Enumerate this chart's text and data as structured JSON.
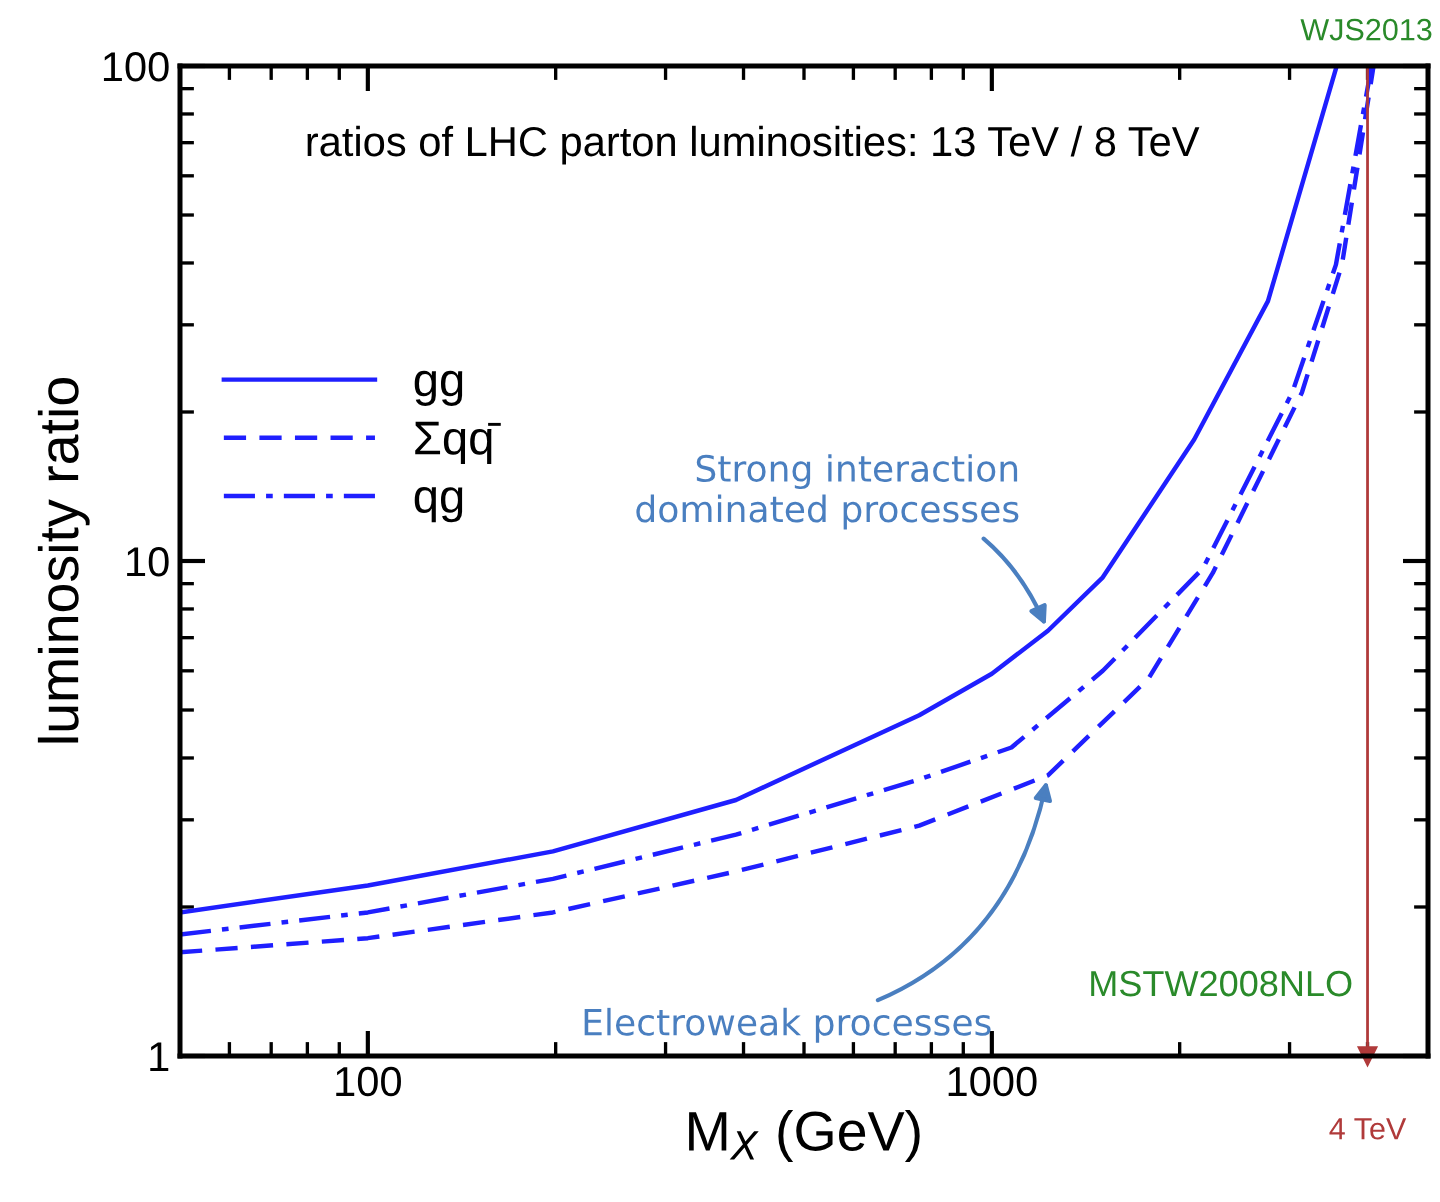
{
  "chart_data": {
    "type": "line",
    "title": "ratios of LHC parton luminosities: 13 TeV / 8 TeV",
    "xlabel": "M$_{X}$ (GeV)",
    "ylabel": "luminosity ratio",
    "log": "xy",
    "xlim": [
      50,
      5000
    ],
    "xticks": [
      100,
      1000
    ],
    "ylim": [
      1,
      100
    ],
    "yticks": [
      1,
      10,
      100
    ],
    "grid": false,
    "legend": "top left",
    "series": [
      {
        "name": "gg",
        "color": "#1f1fff",
        "line_style": "solid",
        "x": [
          50,
          100,
          198,
          389,
          765,
          1000,
          1230,
          1506,
          2110,
          2770,
          3570
        ],
        "values": [
          1.95,
          2.21,
          2.59,
          3.29,
          4.88,
          5.92,
          7.23,
          9.27,
          17.6,
          33.5,
          100
        ]
      },
      {
        "name": "Σqq̄",
        "color": "#1f1fff",
        "line_style": "dashed",
        "x": [
          50,
          100,
          198,
          389,
          765,
          1230,
          1783,
          2260,
          3140,
          3640,
          4090
        ],
        "values": [
          1.62,
          1.73,
          1.95,
          2.36,
          2.92,
          3.69,
          5.79,
          9.46,
          21.9,
          39.7,
          100
        ]
      },
      {
        "name": "qg",
        "color": "#1f1fff",
        "line_style": "dashdot",
        "x": [
          50,
          100,
          198,
          389,
          765,
          1075,
          1506,
          2180,
          3030,
          3560,
          4060
        ],
        "values": [
          1.76,
          1.95,
          2.28,
          2.8,
          3.62,
          4.2,
          6.0,
          9.67,
          21.9,
          39.7,
          100
        ]
      }
    ],
    "ref_lines": [
      {
        "axis": "x",
        "value": 4000,
        "label": "4 TeV",
        "color": "#b03a3a"
      }
    ],
    "annotations": [
      {
        "text": "Strong interaction\ndominated processes",
        "x": 1230,
        "y": 7.23
      },
      {
        "text": "Electroweak processes",
        "x": 1230,
        "y": 3.69
      },
      "WJS2013",
      "MSTW2008NLO"
    ]
  }
}
